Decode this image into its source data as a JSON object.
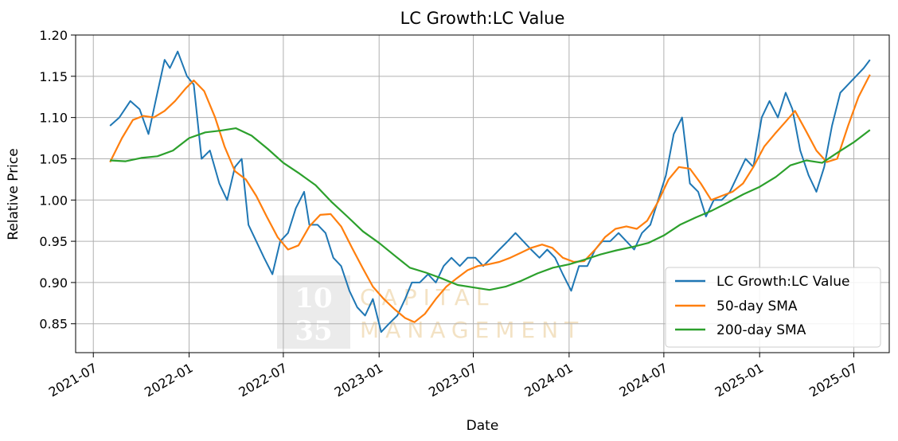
{
  "chart_data": {
    "type": "line",
    "title": "LC Growth:LC Value",
    "xlabel": "Date",
    "ylabel": "Relative Price",
    "x_tick_labels": [
      "2021-07",
      "2022-01",
      "2022-07",
      "2023-01",
      "2023-07",
      "2024-01",
      "2024-07",
      "2025-01",
      "2025-07"
    ],
    "x_ticks": [
      "2021-07-01",
      "2022-01-01",
      "2022-07-01",
      "2023-01-01",
      "2023-07-01",
      "2024-01-01",
      "2024-07-01",
      "2025-01-01",
      "2025-07-01"
    ],
    "y_tick_labels": [
      "0.85",
      "0.90",
      "0.95",
      "1.00",
      "1.05",
      "1.10",
      "1.15",
      "1.20"
    ],
    "y_ticks": [
      0.85,
      0.9,
      0.95,
      1.0,
      1.05,
      1.1,
      1.15,
      1.2
    ],
    "xlim": [
      "2021-05-28",
      "2025-09-07"
    ],
    "ylim": [
      0.815,
      1.2
    ],
    "grid": true,
    "legend_position": "lower-right",
    "watermark": {
      "number_top": "10",
      "number_bottom": "35",
      "line1": "CAPITAL",
      "line2": "MANAGEMENT"
    },
    "series": [
      {
        "name": "LC Growth:LC Value",
        "color": "#1f77b4",
        "x": [
          "2021-08-02",
          "2021-08-20",
          "2021-09-10",
          "2021-09-28",
          "2021-10-15",
          "2021-11-01",
          "2021-11-15",
          "2021-11-25",
          "2021-12-10",
          "2021-12-28",
          "2022-01-10",
          "2022-01-25",
          "2022-02-10",
          "2022-02-28",
          "2022-03-15",
          "2022-03-30",
          "2022-04-12",
          "2022-04-25",
          "2022-05-10",
          "2022-05-25",
          "2022-06-10",
          "2022-06-25",
          "2022-07-10",
          "2022-07-25",
          "2022-08-10",
          "2022-08-20",
          "2022-09-05",
          "2022-09-20",
          "2022-10-05",
          "2022-10-20",
          "2022-11-05",
          "2022-11-20",
          "2022-12-05",
          "2022-12-20",
          "2023-01-05",
          "2023-01-20",
          "2023-02-05",
          "2023-02-20",
          "2023-03-05",
          "2023-03-20",
          "2023-04-05",
          "2023-04-20",
          "2023-05-05",
          "2023-05-20",
          "2023-06-05",
          "2023-06-20",
          "2023-07-05",
          "2023-07-20",
          "2023-08-05",
          "2023-08-20",
          "2023-09-05",
          "2023-09-20",
          "2023-10-05",
          "2023-10-20",
          "2023-11-05",
          "2023-11-20",
          "2023-12-05",
          "2023-12-20",
          "2024-01-05",
          "2024-01-20",
          "2024-02-05",
          "2024-02-20",
          "2024-03-05",
          "2024-03-20",
          "2024-04-05",
          "2024-04-20",
          "2024-05-05",
          "2024-05-20",
          "2024-06-05",
          "2024-06-20",
          "2024-07-05",
          "2024-07-20",
          "2024-08-05",
          "2024-08-20",
          "2024-09-05",
          "2024-09-20",
          "2024-10-05",
          "2024-10-20",
          "2024-11-05",
          "2024-11-20",
          "2024-12-05",
          "2024-12-20",
          "2025-01-05",
          "2025-01-20",
          "2025-02-05",
          "2025-02-20",
          "2025-03-05",
          "2025-03-20",
          "2025-04-05",
          "2025-04-20",
          "2025-05-05",
          "2025-05-20",
          "2025-06-05",
          "2025-06-20",
          "2025-07-05",
          "2025-07-20",
          "2025-08-01"
        ],
        "values": [
          1.09,
          1.1,
          1.12,
          1.11,
          1.08,
          1.13,
          1.17,
          1.16,
          1.18,
          1.15,
          1.14,
          1.05,
          1.06,
          1.02,
          1.0,
          1.04,
          1.05,
          0.97,
          0.95,
          0.93,
          0.91,
          0.95,
          0.96,
          0.99,
          1.01,
          0.97,
          0.97,
          0.96,
          0.93,
          0.92,
          0.89,
          0.87,
          0.86,
          0.88,
          0.84,
          0.85,
          0.86,
          0.88,
          0.9,
          0.9,
          0.91,
          0.9,
          0.92,
          0.93,
          0.92,
          0.93,
          0.93,
          0.92,
          0.93,
          0.94,
          0.95,
          0.96,
          0.95,
          0.94,
          0.93,
          0.94,
          0.93,
          0.91,
          0.89,
          0.92,
          0.92,
          0.94,
          0.95,
          0.95,
          0.96,
          0.95,
          0.94,
          0.96,
          0.97,
          1.0,
          1.03,
          1.08,
          1.1,
          1.02,
          1.01,
          0.98,
          1.0,
          1.0,
          1.01,
          1.03,
          1.05,
          1.04,
          1.1,
          1.12,
          1.1,
          1.13,
          1.11,
          1.06,
          1.03,
          1.01,
          1.04,
          1.09,
          1.13,
          1.14,
          1.15,
          1.16,
          1.17
        ]
      },
      {
        "name": "50-day SMA",
        "color": "#ff7f0e",
        "x": [
          "2021-08-02",
          "2021-08-25",
          "2021-09-15",
          "2021-10-05",
          "2021-10-25",
          "2021-11-15",
          "2021-12-05",
          "2021-12-25",
          "2022-01-10",
          "2022-01-30",
          "2022-02-20",
          "2022-03-10",
          "2022-03-30",
          "2022-04-20",
          "2022-05-10",
          "2022-05-30",
          "2022-06-20",
          "2022-07-10",
          "2022-07-30",
          "2022-08-20",
          "2022-09-10",
          "2022-09-30",
          "2022-10-20",
          "2022-11-10",
          "2022-11-30",
          "2022-12-20",
          "2023-01-10",
          "2023-01-30",
          "2023-02-20",
          "2023-03-10",
          "2023-03-30",
          "2023-04-20",
          "2023-05-10",
          "2023-05-30",
          "2023-06-20",
          "2023-07-10",
          "2023-07-30",
          "2023-08-20",
          "2023-09-10",
          "2023-09-30",
          "2023-10-20",
          "2023-11-10",
          "2023-11-30",
          "2023-12-20",
          "2024-01-10",
          "2024-01-30",
          "2024-02-20",
          "2024-03-10",
          "2024-03-30",
          "2024-04-20",
          "2024-05-10",
          "2024-05-30",
          "2024-06-20",
          "2024-07-10",
          "2024-07-30",
          "2024-08-20",
          "2024-09-10",
          "2024-09-30",
          "2024-10-20",
          "2024-11-10",
          "2024-11-30",
          "2024-12-20",
          "2025-01-10",
          "2025-01-30",
          "2025-02-20",
          "2025-03-10",
          "2025-03-30",
          "2025-04-20",
          "2025-05-10",
          "2025-05-30",
          "2025-06-20",
          "2025-07-10",
          "2025-08-01"
        ],
        "values": [
          1.046,
          1.075,
          1.097,
          1.102,
          1.1,
          1.108,
          1.12,
          1.135,
          1.145,
          1.132,
          1.1,
          1.065,
          1.035,
          1.025,
          1.005,
          0.98,
          0.955,
          0.94,
          0.945,
          0.968,
          0.982,
          0.983,
          0.968,
          0.942,
          0.918,
          0.895,
          0.88,
          0.868,
          0.857,
          0.852,
          0.862,
          0.88,
          0.895,
          0.905,
          0.915,
          0.92,
          0.922,
          0.925,
          0.93,
          0.936,
          0.942,
          0.946,
          0.942,
          0.93,
          0.925,
          0.926,
          0.94,
          0.955,
          0.965,
          0.968,
          0.965,
          0.975,
          0.998,
          1.025,
          1.04,
          1.038,
          1.02,
          1.0,
          1.005,
          1.01,
          1.02,
          1.04,
          1.065,
          1.08,
          1.095,
          1.108,
          1.085,
          1.06,
          1.046,
          1.05,
          1.09,
          1.125,
          1.152
        ]
      },
      {
        "name": "200-day SMA",
        "color": "#2ca02c",
        "x": [
          "2021-08-02",
          "2021-09-01",
          "2021-10-01",
          "2021-11-01",
          "2021-12-01",
          "2022-01-01",
          "2022-02-01",
          "2022-03-01",
          "2022-04-01",
          "2022-05-01",
          "2022-06-01",
          "2022-07-01",
          "2022-08-01",
          "2022-09-01",
          "2022-10-01",
          "2022-11-01",
          "2022-12-01",
          "2023-01-01",
          "2023-02-01",
          "2023-03-01",
          "2023-04-01",
          "2023-05-01",
          "2023-06-01",
          "2023-07-01",
          "2023-08-01",
          "2023-09-01",
          "2023-10-01",
          "2023-11-01",
          "2023-12-01",
          "2024-01-01",
          "2024-02-01",
          "2024-03-01",
          "2024-04-01",
          "2024-05-01",
          "2024-06-01",
          "2024-07-01",
          "2024-08-01",
          "2024-09-01",
          "2024-10-01",
          "2024-11-01",
          "2024-12-01",
          "2025-01-01",
          "2025-02-01",
          "2025-03-01",
          "2025-04-01",
          "2025-05-01",
          "2025-06-01",
          "2025-07-01",
          "2025-08-01"
        ],
        "values": [
          1.048,
          1.047,
          1.051,
          1.053,
          1.06,
          1.075,
          1.082,
          1.084,
          1.087,
          1.078,
          1.062,
          1.045,
          1.032,
          1.018,
          0.998,
          0.98,
          0.962,
          0.948,
          0.932,
          0.918,
          0.912,
          0.905,
          0.897,
          0.894,
          0.891,
          0.895,
          0.902,
          0.911,
          0.918,
          0.922,
          0.928,
          0.934,
          0.939,
          0.943,
          0.948,
          0.957,
          0.97,
          0.979,
          0.987,
          0.997,
          1.007,
          1.016,
          1.028,
          1.042,
          1.048,
          1.045,
          1.058,
          1.07,
          1.085
        ]
      }
    ]
  }
}
